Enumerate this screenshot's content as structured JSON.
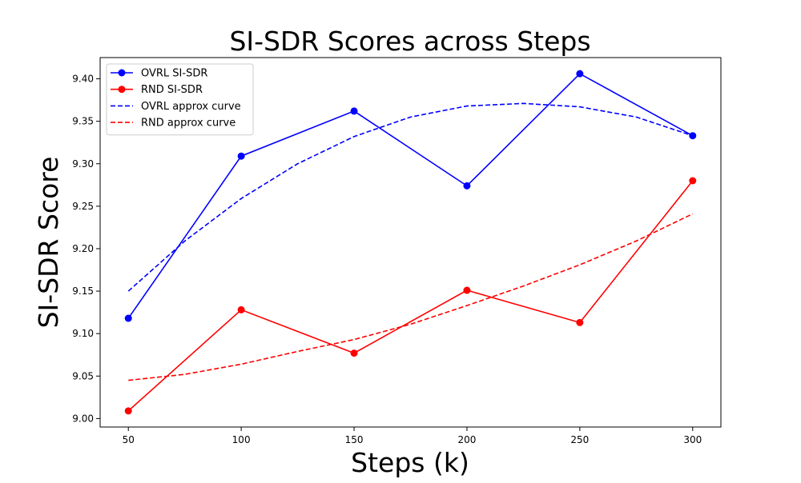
{
  "chart_data": {
    "type": "line",
    "title": "SI-SDR Scores across Steps",
    "xlabel": "Steps (k)",
    "ylabel": "SI-SDR Score",
    "x": [
      50,
      100,
      150,
      200,
      250,
      300
    ],
    "xlim": [
      37.5,
      312.5
    ],
    "ylim": [
      8.99,
      9.425
    ],
    "xticks": [
      50,
      100,
      150,
      200,
      250,
      300
    ],
    "yticks": [
      9.0,
      9.05,
      9.1,
      9.15,
      9.2,
      9.25,
      9.3,
      9.35,
      9.4
    ],
    "grid": false,
    "legend_position": "top-left",
    "series": [
      {
        "name": "OVRL SI-SDR",
        "style": "solid-marker",
        "color": "#0000ff",
        "values": [
          9.118,
          9.309,
          9.362,
          9.274,
          9.406,
          9.333
        ]
      },
      {
        "name": "RND SI-SDR",
        "style": "solid-marker",
        "color": "#ff0000",
        "values": [
          9.009,
          9.128,
          9.077,
          9.151,
          9.113,
          9.28
        ]
      },
      {
        "name": "OVRL approx curve",
        "style": "dashed",
        "color": "#0000ff",
        "curve_x": [
          50,
          75,
          100,
          125,
          150,
          175,
          200,
          225,
          250,
          275,
          300
        ],
        "curve_y": [
          9.15,
          9.209,
          9.259,
          9.3,
          9.332,
          9.355,
          9.368,
          9.371,
          9.367,
          9.355,
          9.333
        ]
      },
      {
        "name": "RND approx curve",
        "style": "dashed",
        "color": "#ff0000",
        "curve_x": [
          50,
          75,
          100,
          125,
          150,
          175,
          200,
          225,
          250,
          275,
          300
        ],
        "curve_y": [
          9.045,
          9.052,
          9.064,
          9.079,
          9.093,
          9.111,
          9.133,
          9.156,
          9.181,
          9.209,
          9.241
        ]
      }
    ]
  }
}
